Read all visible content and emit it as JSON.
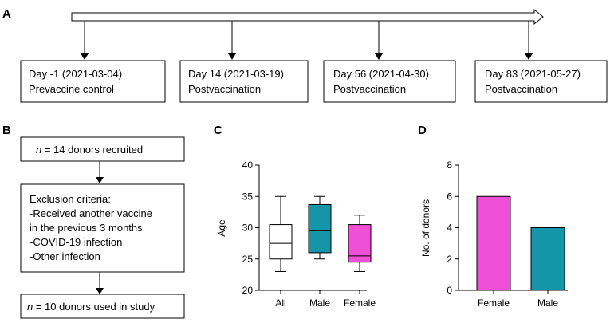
{
  "panels": {
    "a": "A",
    "b": "B",
    "c": "C",
    "d": "D"
  },
  "timeline": {
    "timepoints": [
      {
        "date": "Day -1 (2021-03-04)",
        "label": "Prevaccine control"
      },
      {
        "date": "Day 14 (2021-03-19)",
        "label": "Postvaccination"
      },
      {
        "date": "Day 56 (2021-04-30)",
        "label": "Postvaccination"
      },
      {
        "date": "Day 83 (2021-05-27)",
        "label": "Postvaccination"
      }
    ]
  },
  "flow": {
    "recruited": {
      "n_symbol": "n",
      "rest": " = 14 donors recruited"
    },
    "exclusion": {
      "title": "Exclusion criteria:",
      "lines": [
        "-Received another vaccine",
        "in the previous 3 months",
        "-COVID-19 infection",
        "-Other infection"
      ]
    },
    "used": {
      "n_symbol": "n",
      "rest": " = 10 donors used in study"
    }
  },
  "chart_data": [
    {
      "type": "box",
      "title": "",
      "xlabel": "",
      "ylabel": "Age",
      "ylim": [
        20,
        40
      ],
      "yticks": [
        "20",
        "25",
        "30",
        "35",
        "40"
      ],
      "categories": [
        "All",
        "Male",
        "Female"
      ],
      "boxes": [
        {
          "name": "All",
          "min": 23,
          "q1": 25,
          "median": 27.5,
          "q3": 30.5,
          "max": 35,
          "color": "#ffffff"
        },
        {
          "name": "Male",
          "min": 25,
          "q1": 26,
          "median": 29.5,
          "q3": 33.7,
          "max": 35,
          "color": "#1496a8"
        },
        {
          "name": "Female",
          "min": 23,
          "q1": 24.5,
          "median": 25.5,
          "q3": 30.5,
          "max": 32,
          "color": "#f050d6"
        }
      ]
    },
    {
      "type": "bar",
      "title": "",
      "xlabel": "",
      "ylabel": "No. of donors",
      "ylim": [
        0,
        8
      ],
      "yticks": [
        "0",
        "2",
        "4",
        "6",
        "8"
      ],
      "categories": [
        "Female",
        "Male"
      ],
      "values": [
        6,
        4
      ],
      "colors": [
        "#f050d6",
        "#1496a8"
      ]
    }
  ]
}
